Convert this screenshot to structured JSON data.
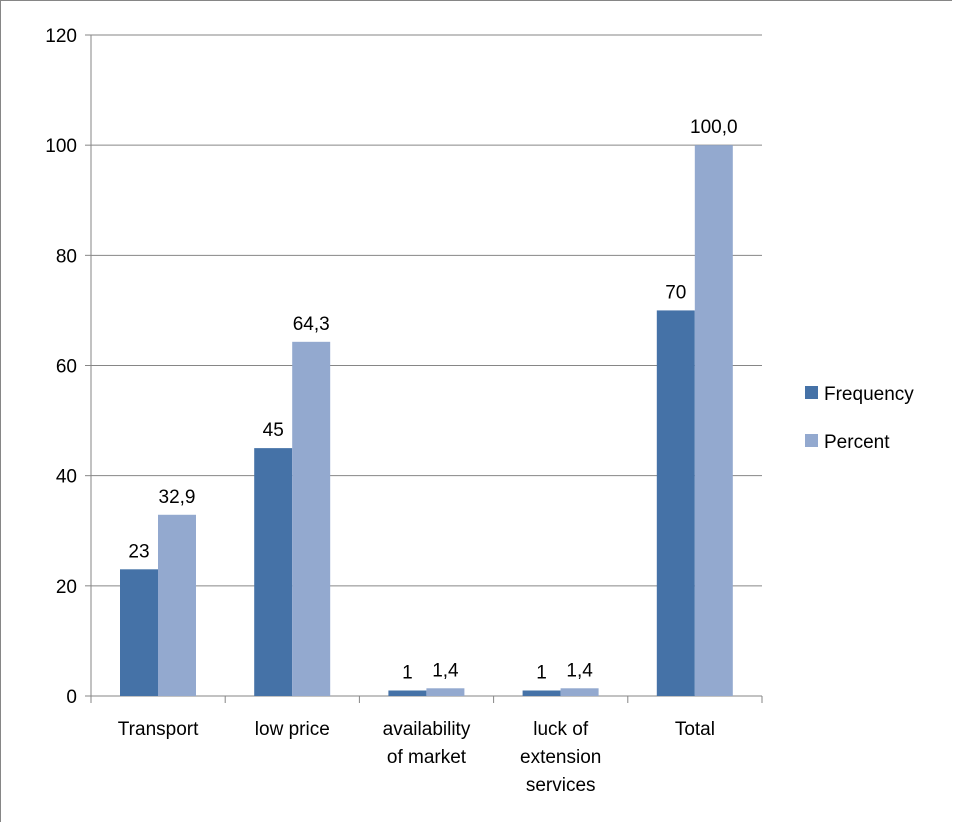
{
  "chart_data": {
    "type": "bar",
    "categories": [
      [
        "Transport"
      ],
      [
        "low price"
      ],
      [
        "availability",
        "of market"
      ],
      [
        "luck of",
        "extension",
        "services"
      ],
      [
        "Total"
      ]
    ],
    "series": [
      {
        "name": "Frequency",
        "color": "#4572A7",
        "values": [
          23,
          45,
          1,
          1,
          70
        ],
        "labels": [
          "23",
          "45",
          "1",
          "1",
          "70"
        ]
      },
      {
        "name": "Percent",
        "color": "#93A9CF",
        "values": [
          32.9,
          64.3,
          1.4,
          1.4,
          100.0
        ],
        "labels": [
          "32,9",
          "64,3",
          "1,4",
          "1,4",
          "100,0"
        ]
      }
    ],
    "yticks": [
      "0",
      "20",
      "40",
      "60",
      "80",
      "100",
      "120"
    ],
    "ylim": [
      0,
      120
    ],
    "grid": true,
    "legend": "right",
    "title": "",
    "xlabel": "",
    "ylabel": ""
  }
}
